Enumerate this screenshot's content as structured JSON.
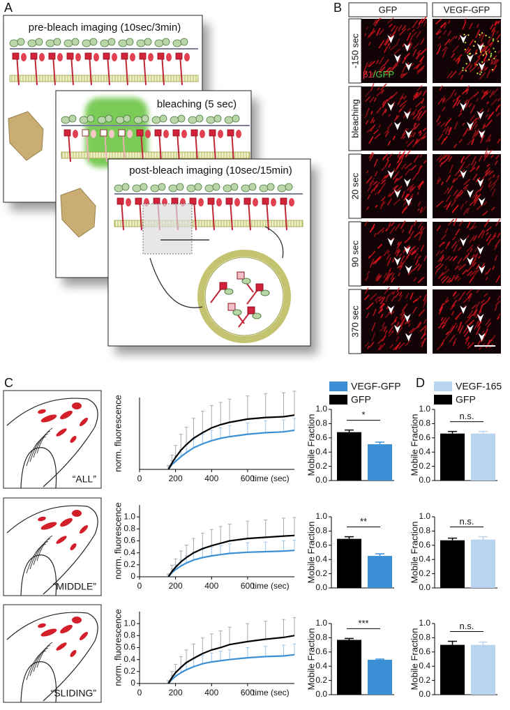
{
  "panel_a": {
    "label": "A",
    "steps": [
      "pre-bleach imaging (10sec/3min)",
      "bleaching (5 sec)",
      "post-bleach imaging (10sec/15min)"
    ]
  },
  "panel_b": {
    "label": "B",
    "columns": [
      "GFP",
      "VEGF-GFP"
    ],
    "rows": [
      "-150 sec",
      "bleaching",
      "20 sec",
      "90 sec",
      "370 sec"
    ],
    "stain": [
      "β1",
      "/GFP"
    ]
  },
  "panel_c": {
    "label": "C",
    "legend": [
      {
        "name": "VEGF-GFP",
        "color": "#3b8fd4"
      },
      {
        "name": "GFP",
        "color": "#000000"
      }
    ],
    "rows": [
      {
        "region": "“ALL”",
        "curve": {
          "ylabel": "norm. fluorescence",
          "xlabel": "time (sec)",
          "xlim": [
            0,
            860
          ],
          "xticks": [
            0,
            200,
            400,
            600
          ],
          "ylim": [
            0,
            0.9
          ],
          "x": [
            160,
            180,
            200,
            230,
            260,
            300,
            350,
            400,
            450,
            500,
            600,
            700,
            800,
            860
          ],
          "series": [
            {
              "values": [
                0,
                0.06,
                0.1,
                0.16,
                0.21,
                0.27,
                0.32,
                0.36,
                0.39,
                0.41,
                0.44,
                0.46,
                0.47,
                0.49
              ],
              "errors": [
                0.03,
                0.05,
                0.07,
                0.09,
                0.1,
                0.11,
                0.12,
                0.13,
                0.13,
                0.14,
                0.14,
                0.15,
                0.15,
                0.15
              ]
            },
            {
              "values": [
                0,
                0.08,
                0.15,
                0.24,
                0.31,
                0.39,
                0.46,
                0.52,
                0.56,
                0.59,
                0.63,
                0.65,
                0.66,
                0.68
              ],
              "errors": [
                0.05,
                0.1,
                0.15,
                0.2,
                0.22,
                0.25,
                0.27,
                0.28,
                0.28,
                0.29,
                0.29,
                0.3,
                0.3,
                0.3
              ]
            }
          ]
        },
        "bars": {
          "ylabel": "Mobile Fraction",
          "ylim": [
            0,
            1
          ],
          "yticks": [
            {
              "value": 0,
              "label": "0.0"
            },
            0.2,
            0.4,
            0.6,
            0.8,
            {
              "value": 1,
              "label": "1.0"
            }
          ],
          "values": [
            0.68,
            0.51
          ],
          "errors": [
            0.03,
            0.03
          ],
          "significance": "*"
        }
      },
      {
        "region": "“MIDDLE”",
        "curve": {
          "ylabel": "norm. fluorescence",
          "xlabel": "time (sec)",
          "xlim": [
            0,
            860
          ],
          "xticks": [
            0,
            200,
            400,
            600
          ],
          "ylim": [
            0,
            1.2
          ],
          "yticks": [
            0,
            0.2,
            0.4,
            0.6,
            0.8,
            {
              "value": 1,
              "label": "1.0"
            }
          ],
          "x": [
            160,
            180,
            200,
            230,
            260,
            300,
            350,
            400,
            450,
            500,
            600,
            700,
            800,
            860
          ],
          "series": [
            {
              "values": [
                0,
                0.07,
                0.12,
                0.18,
                0.23,
                0.28,
                0.32,
                0.35,
                0.37,
                0.39,
                0.41,
                0.42,
                0.43,
                0.44
              ],
              "errors": [
                0.03,
                0.06,
                0.08,
                0.1,
                0.12,
                0.13,
                0.14,
                0.15,
                0.15,
                0.16,
                0.16,
                0.16,
                0.17,
                0.17
              ]
            },
            {
              "values": [
                0,
                0.09,
                0.16,
                0.25,
                0.32,
                0.4,
                0.47,
                0.52,
                0.56,
                0.6,
                0.64,
                0.66,
                0.68,
                0.69
              ],
              "errors": [
                0.05,
                0.1,
                0.14,
                0.18,
                0.21,
                0.24,
                0.26,
                0.27,
                0.28,
                0.28,
                0.29,
                0.29,
                0.3,
                0.3
              ]
            }
          ]
        },
        "bars": {
          "ylabel": "Mobile Fraction",
          "ylim": [
            0,
            1
          ],
          "yticks": [
            {
              "value": 0,
              "label": "0.0"
            },
            0.2,
            0.4,
            0.6,
            0.8,
            {
              "value": 1,
              "label": "1.0"
            }
          ],
          "values": [
            0.69,
            0.45
          ],
          "errors": [
            0.03,
            0.03
          ],
          "significance": "**"
        }
      },
      {
        "region": "“SLIDING”",
        "curve": {
          "ylabel": "norm. fluorescence",
          "xlabel": "time (sec)",
          "xlim": [
            0,
            860
          ],
          "xticks": [
            0,
            200,
            400,
            600
          ],
          "ylim": [
            0,
            1.2
          ],
          "yticks": [
            0,
            0.2,
            0.4,
            0.6,
            0.8,
            {
              "value": 1,
              "label": "1.0"
            }
          ],
          "x": [
            160,
            180,
            200,
            230,
            260,
            300,
            350,
            400,
            450,
            500,
            600,
            700,
            800,
            860
          ],
          "series": [
            {
              "values": [
                0,
                0.07,
                0.12,
                0.18,
                0.23,
                0.28,
                0.33,
                0.36,
                0.38,
                0.4,
                0.43,
                0.45,
                0.46,
                0.48
              ],
              "errors": [
                0.03,
                0.06,
                0.08,
                0.1,
                0.12,
                0.13,
                0.14,
                0.15,
                0.16,
                0.16,
                0.17,
                0.17,
                0.18,
                0.18
              ]
            },
            {
              "values": [
                0,
                0.1,
                0.18,
                0.27,
                0.35,
                0.42,
                0.5,
                0.56,
                0.6,
                0.65,
                0.7,
                0.74,
                0.77,
                0.8
              ],
              "errors": [
                0.05,
                0.1,
                0.14,
                0.18,
                0.21,
                0.24,
                0.26,
                0.27,
                0.28,
                0.29,
                0.3,
                0.3,
                0.3,
                0.3
              ]
            }
          ]
        },
        "bars": {
          "ylabel": "Mobile Fraction",
          "ylim": [
            0,
            1
          ],
          "yticks": [
            {
              "value": 0,
              "label": "0.0"
            },
            0.2,
            0.4,
            0.6,
            0.8,
            {
              "value": 1,
              "label": "1.0"
            }
          ],
          "values": [
            0.77,
            0.49
          ],
          "errors": [
            0.02,
            0.01
          ],
          "significance": "***"
        }
      }
    ]
  },
  "panel_d": {
    "label": "D",
    "legend": [
      {
        "name": "VEGF-165",
        "color": "#b8d4ee"
      },
      {
        "name": "GFP",
        "color": "#000000"
      }
    ],
    "charts": [
      {
        "ylabel": "Mobile Fraction",
        "ylim": [
          0,
          1
        ],
        "yticks": [
          {
            "value": 0,
            "label": "0.0"
          },
          0.2,
          0.4,
          0.6,
          0.8,
          {
            "value": 1,
            "label": "1.0"
          }
        ],
        "values": [
          0.66,
          0.66
        ],
        "errors": [
          0.03,
          0.03
        ],
        "significance": "n.s."
      },
      {
        "ylabel": "Mobile Fraction",
        "ylim": [
          0,
          1
        ],
        "yticks": [
          {
            "value": 0,
            "label": "0.0"
          },
          0.2,
          0.4,
          0.6,
          0.8,
          {
            "value": 1,
            "label": "1.0"
          }
        ],
        "values": [
          0.67,
          0.68
        ],
        "errors": [
          0.03,
          0.04
        ],
        "significance": "n.s."
      },
      {
        "ylabel": "Mobile Fraction",
        "ylim": [
          0,
          1
        ],
        "yticks": [
          {
            "value": 0,
            "label": "0.0"
          },
          0.2,
          0.4,
          0.6,
          0.8,
          {
            "value": 1,
            "label": "1.0"
          }
        ],
        "values": [
          0.7,
          0.7
        ],
        "errors": [
          0.05,
          0.04
        ],
        "significance": "n.s."
      }
    ]
  }
}
